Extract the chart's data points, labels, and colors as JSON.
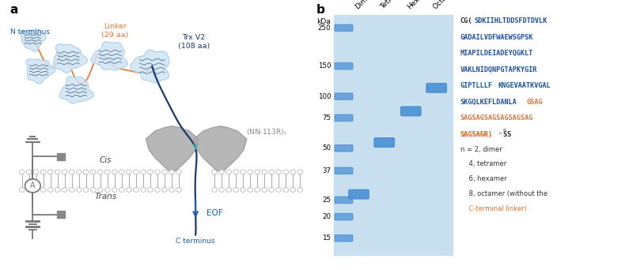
{
  "panel_a_label": "a",
  "panel_b_label": "b",
  "bg_color": "#ffffff",
  "gel_bg_color": "#c8dff0",
  "gel_band_color": "#4a8fd4",
  "ladder_kda": [
    250,
    150,
    100,
    75,
    50,
    37,
    25,
    20,
    15
  ],
  "ladder_labels": [
    "250",
    "150",
    "100",
    "75",
    "50",
    "37",
    "25",
    "20",
    "15"
  ],
  "lane_labels": [
    "Dimer",
    "Tetramer",
    "Hexamer",
    "Octamer"
  ],
  "dimer_kda": 27,
  "tetramer_kda": 54,
  "hexamer_kda": 82,
  "octamer_kda": 112,
  "kda_label": "kDa",
  "blue_dark": "#1a3a6b",
  "blue_seq": "#1c4e9e",
  "orange_seq": "#e07535",
  "linker_color": "#e07535",
  "trx_color": "#1a3a6b",
  "eof_color": "#1a5dad",
  "nn113r_color": "#888888",
  "label_color_n_terminus": "#1a5dad",
  "circuit_color": "#777777",
  "membrane_head_color": "#ffffff",
  "membrane_line_color": "#aaaaaa"
}
